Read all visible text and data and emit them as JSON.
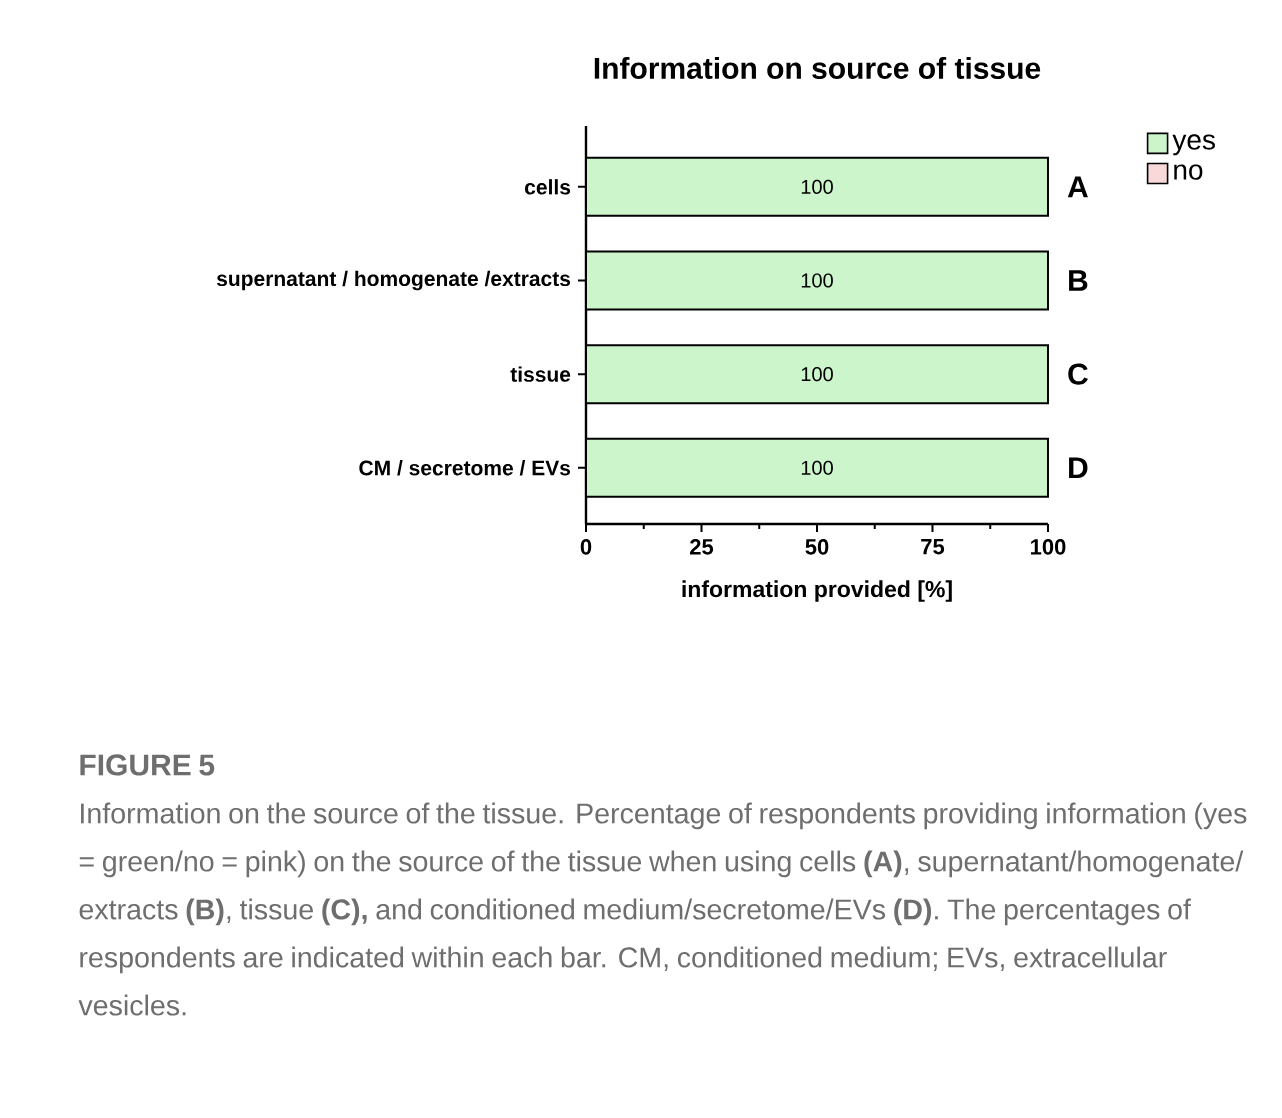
{
  "chart_data": {
    "type": "bar",
    "orientation": "horizontal",
    "stacked": true,
    "title": "Information on source of tissue",
    "categories": [
      "cells",
      "supernatant / homogenate /extracts",
      "tissue",
      "CM / secretome / EVs"
    ],
    "series": [
      {
        "name": "yes",
        "color": "#ccf5cc",
        "values": [
          100,
          100,
          100,
          100
        ],
        "value_labels": [
          "100",
          "100",
          "100",
          "100"
        ]
      },
      {
        "name": "no",
        "color": "#f8d8d8",
        "values": [
          0,
          0,
          0,
          0
        ]
      }
    ],
    "xlabel": "information provided [%]",
    "xlim": [
      0,
      100
    ],
    "xticks": [
      0,
      {
        "value": 12.5,
        "label": null
      },
      25,
      {
        "value": 37.5,
        "label": null
      },
      50,
      {
        "value": 62.5,
        "label": null
      },
      75,
      {
        "value": 87.5,
        "label": null
      },
      100
    ],
    "legend": "top right",
    "annotations": [
      "A",
      "B",
      "C",
      "D",
      "FIGURE 5",
      "Information on the source of the tissue. Percentage of respondents providing information (yes = green/no = pink) on the source of the tissue when using cells **(A)**, supernatant/homogenate/ extracts **(B)**, tissue **(C),** and conditioned medium/secretome/EVs **(D)**. The percentages of respondents are indicated within each bar. CM, conditioned medium; EVs, extracellular vesicles."
    ]
  }
}
